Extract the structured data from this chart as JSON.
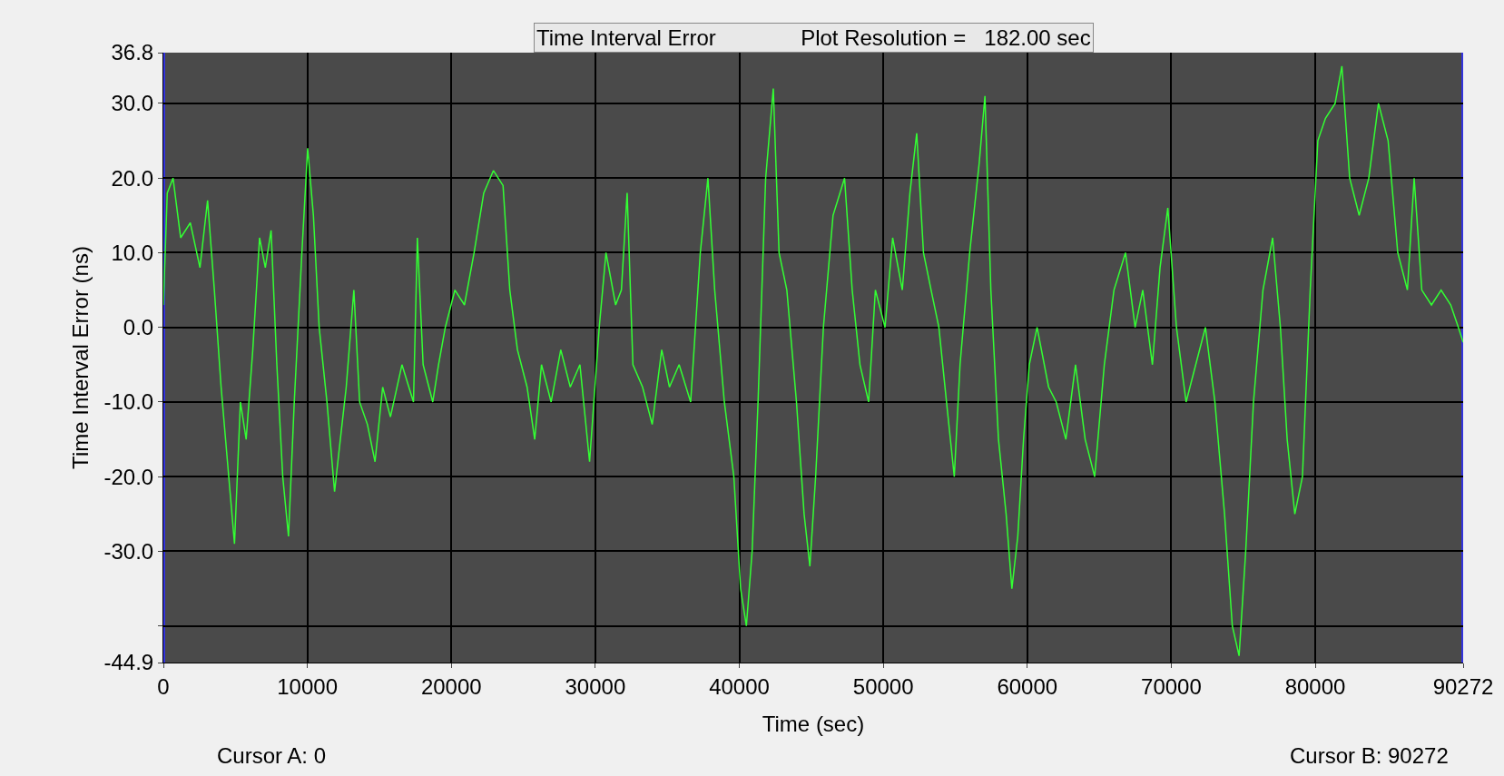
{
  "chart_data": {
    "type": "line",
    "title": "Time Interval Error",
    "subtitle": "Plot Resolution =   182.00 sec",
    "xlabel": "Time (sec)",
    "ylabel": "Time Interval Error (ns)",
    "xlim": [
      0,
      90272
    ],
    "xticks": [
      0,
      10000,
      20000,
      30000,
      40000,
      50000,
      60000,
      70000,
      80000,
      90272
    ],
    "ylim": [
      -44.9,
      36.8
    ],
    "yticks": [
      -44.9,
      {
        "value": -40,
        "label": null
      },
      {
        "value": -30,
        "label": "-30.0"
      },
      {
        "value": -20,
        "label": "-20.0"
      },
      {
        "value": -10,
        "label": "-10.0"
      },
      {
        "value": 0,
        "label": "0.0"
      },
      {
        "value": 10,
        "label": "10.0"
      },
      {
        "value": 20,
        "label": "20.0"
      },
      {
        "value": 30,
        "label": "30.0"
      },
      36.8
    ],
    "annotations": [
      "Cursor A: 0",
      "Cursor B: 90272"
    ],
    "grid": true,
    "line_style": "solid",
    "marker": "none",
    "ref_lines": [
      {
        "axis": "x",
        "value": 0,
        "color": "#3333dd"
      },
      {
        "axis": "x",
        "value": 90272,
        "color": "#3333dd"
      }
    ],
    "series": [
      {
        "color": "#33ff33",
        "x": [
          0,
          270,
          670,
          1200,
          1870,
          2540,
          3070,
          3540,
          4010,
          4540,
          4940,
          5350,
          5750,
          6210,
          6680,
          7080,
          7480,
          7880,
          8290,
          8690,
          9090,
          9620,
          10020,
          10420,
          10820,
          11360,
          11890,
          12290,
          12700,
          13230,
          13630,
          14170,
          14700,
          15230,
          15770,
          16570,
          17370,
          17640,
          18040,
          18710,
          19110,
          19580,
          20250,
          20910,
          21580,
          22250,
          22920,
          23590,
          24060,
          24590,
          25260,
          25790,
          26260,
          26930,
          27600,
          28260,
          28930,
          29600,
          30270,
          30740,
          31410,
          31810,
          32210,
          32610,
          33280,
          33950,
          34610,
          35150,
          35820,
          36620,
          37290,
          37820,
          38290,
          38960,
          39620,
          40090,
          40490,
          40890,
          41300,
          41830,
          42360,
          42760,
          43300,
          43970,
          44500,
          44900,
          45300,
          45840,
          46510,
          47310,
          47840,
          48380,
          48980,
          49450,
          50120,
          50650,
          51320,
          51850,
          52320,
          52790,
          53320,
          53860,
          54390,
          54930,
          55330,
          56000,
          56660,
          57060,
          57470,
          58000,
          58530,
          58930,
          59340,
          59740,
          60140,
          60680,
          61480,
          62010,
          62680,
          63350,
          64020,
          64680,
          65350,
          66020,
          66820,
          67490,
          68020,
          68690,
          69220,
          69760,
          70360,
          71030,
          71700,
          72370,
          73030,
          73700,
          74240,
          74710,
          75170,
          75710,
          76370,
          77040,
          77580,
          78050,
          78580,
          79110,
          79650,
          80180,
          80710,
          81380,
          81850,
          82390,
          83050,
          83720,
          84390,
          85060,
          85730,
          86400,
          86870,
          87400,
          88070,
          88740,
          89410,
          89940,
          90272
        ],
        "values": [
          3,
          18,
          20,
          12,
          14,
          8,
          17,
          5,
          -8,
          -20,
          -29,
          -10,
          -15,
          -3,
          12,
          8,
          13,
          -5,
          -20,
          -28,
          -10,
          10,
          24,
          15,
          0,
          -10,
          -22,
          -15,
          -8,
          5,
          -10,
          -13,
          -18,
          -8,
          -12,
          -5,
          -10,
          12,
          -5,
          -10,
          -5,
          0,
          5,
          3,
          10,
          18,
          21,
          19,
          5,
          -3,
          -8,
          -15,
          -5,
          -10,
          -3,
          -8,
          -5,
          -18,
          0,
          10,
          3,
          5,
          18,
          -5,
          -8,
          -13,
          -3,
          -8,
          -5,
          -10,
          10,
          20,
          5,
          -10,
          -20,
          -35,
          -40,
          -30,
          -10,
          20,
          32,
          10,
          5,
          -10,
          -25,
          -32,
          -20,
          0,
          15,
          20,
          5,
          -5,
          -10,
          5,
          0,
          12,
          5,
          18,
          26,
          10,
          5,
          0,
          -10,
          -20,
          -5,
          10,
          22,
          31,
          5,
          -15,
          -25,
          -35,
          -28,
          -15,
          -5,
          0,
          -8,
          -10,
          -15,
          -5,
          -15,
          -20,
          -5,
          5,
          10,
          0,
          5,
          -5,
          8,
          16,
          0,
          -10,
          -5,
          0,
          -10,
          -25,
          -40,
          -44,
          -30,
          -10,
          5,
          12,
          0,
          -15,
          -25,
          -20,
          5,
          25,
          28,
          30,
          35,
          20,
          15,
          20,
          30,
          25,
          10,
          5,
          20,
          5,
          3,
          5,
          3,
          0,
          -2
        ]
      }
    ]
  }
}
